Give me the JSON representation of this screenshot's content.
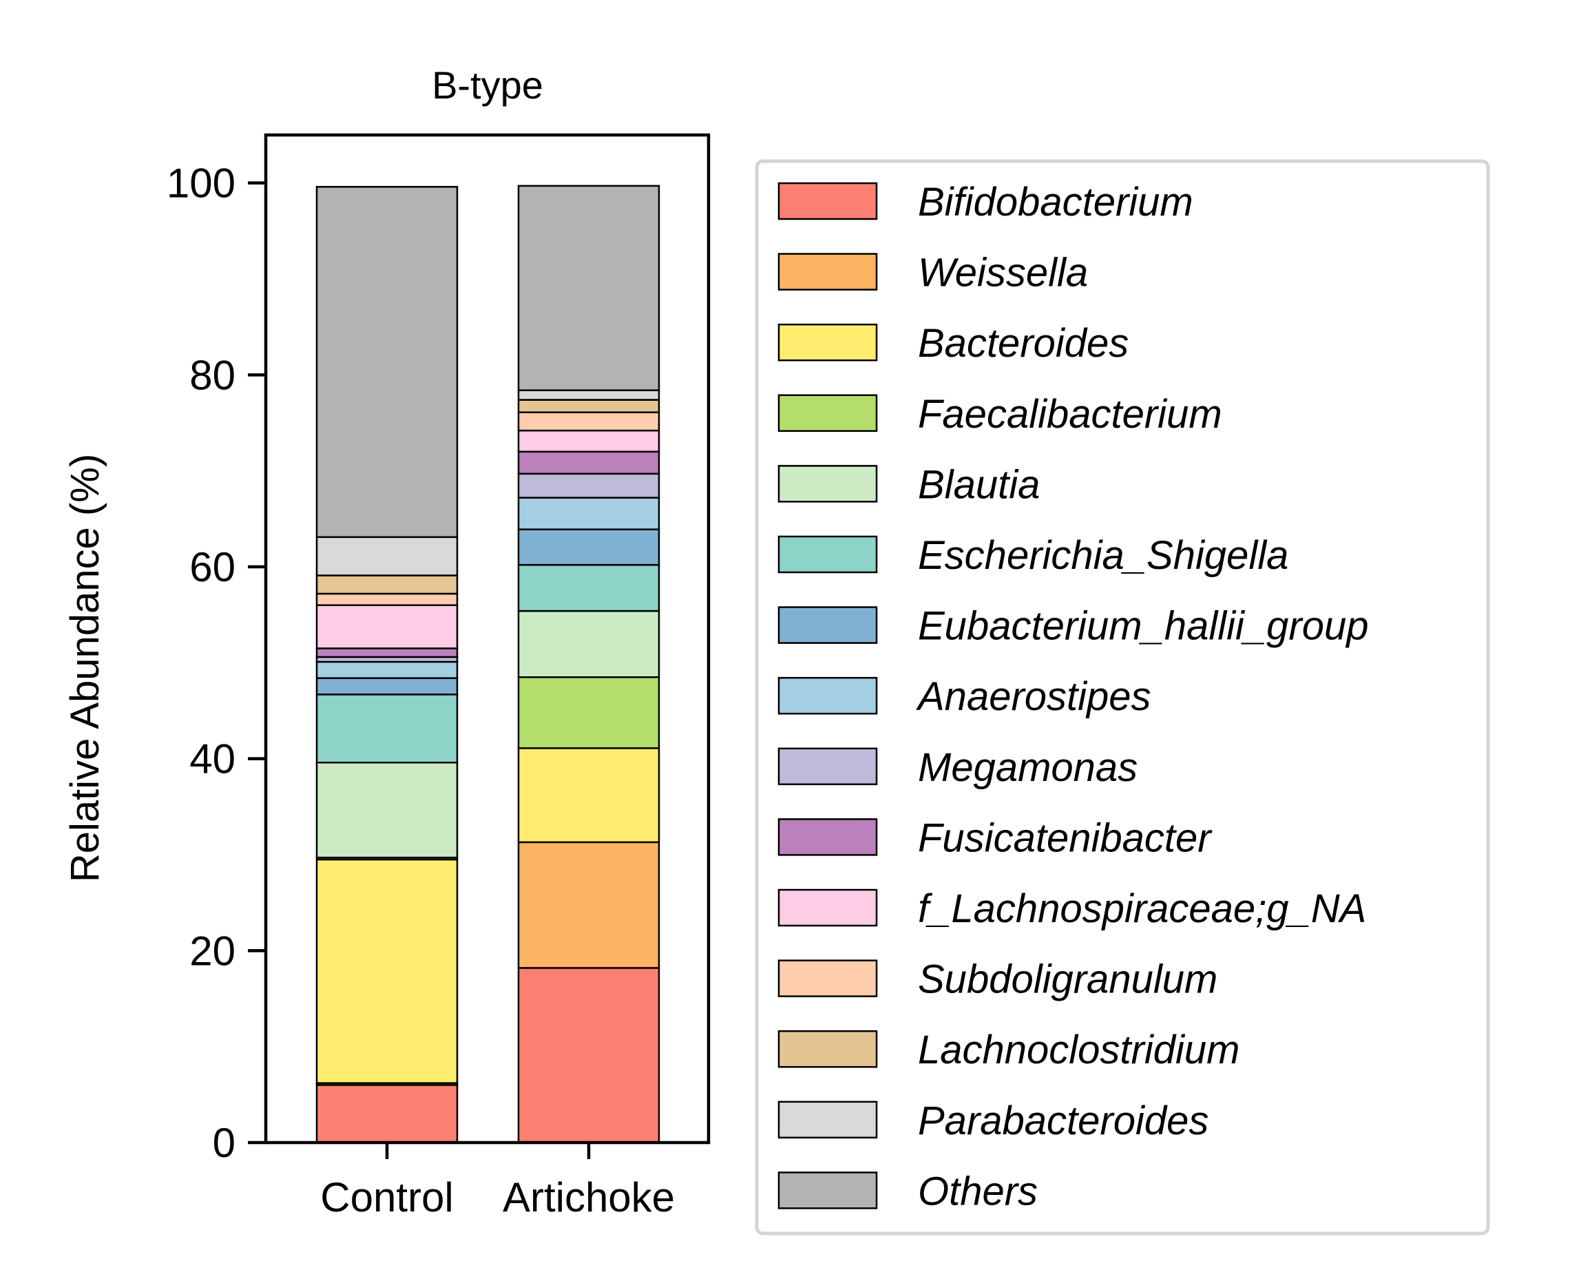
{
  "chart_data": {
    "type": "bar",
    "stacked": true,
    "title": "B-type",
    "ylabel": "Relative Abundance (%)",
    "xlabel": "",
    "ylim": [
      0,
      105
    ],
    "yticks": [
      0,
      20,
      40,
      60,
      80,
      100
    ],
    "categories": [
      "Control",
      "Artichoke"
    ],
    "legend_position": "right",
    "series": [
      {
        "name": "Bifidobacterium",
        "color": "#fb8072",
        "values": [
          6.0,
          18.2
        ]
      },
      {
        "name": "Weissella",
        "color": "#fdb462",
        "values": [
          0.2,
          13.1
        ]
      },
      {
        "name": "Bacteroides",
        "color": "#ffed6f",
        "values": [
          23.3,
          9.8
        ]
      },
      {
        "name": "Faecalibacterium",
        "color": "#b3de69",
        "values": [
          0.2,
          7.4
        ]
      },
      {
        "name": "Blautia",
        "color": "#ccebc5",
        "values": [
          9.9,
          6.9
        ]
      },
      {
        "name": "Escherichia_Shigella",
        "color": "#8dd3c7",
        "values": [
          7.1,
          4.8
        ]
      },
      {
        "name": "Eubacterium_hallii_group",
        "color": "#80b1d3",
        "values": [
          1.7,
          3.7
        ]
      },
      {
        "name": "Anaerostipes",
        "color": "#a6cee3",
        "values": [
          1.7,
          3.3
        ]
      },
      {
        "name": "Megamonas",
        "color": "#bebada",
        "values": [
          0.5,
          2.5
        ]
      },
      {
        "name": "Fusicatenibacter",
        "color": "#bc80bd",
        "values": [
          0.9,
          2.3
        ]
      },
      {
        "name": "f_Lachnospiraceae;g_NA",
        "color": "#fccde5",
        "values": [
          4.5,
          2.2
        ]
      },
      {
        "name": "Subdoligranulum",
        "color": "#fdcdac",
        "values": [
          1.2,
          1.9
        ]
      },
      {
        "name": "Lachnoclostridium",
        "color": "#e5c494",
        "values": [
          1.9,
          1.3
        ]
      },
      {
        "name": "Parabacteroides",
        "color": "#d9d9d9",
        "values": [
          4.0,
          1.0
        ]
      },
      {
        "name": "Others",
        "color": "#b3b3b3",
        "values": [
          36.5,
          21.3
        ]
      }
    ]
  }
}
